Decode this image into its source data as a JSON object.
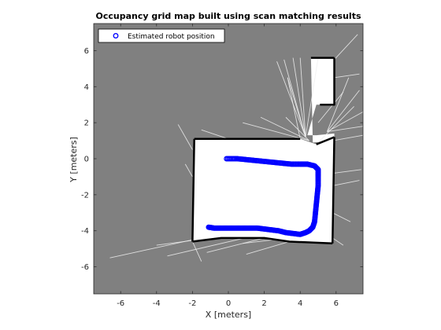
{
  "chart_data": {
    "type": "scatter",
    "title": "Occupancy grid map built using scan matching results",
    "xlabel": "X [meters]",
    "ylabel": "Y [meters]",
    "xlim": [
      -7.5,
      7.5
    ],
    "ylim": [
      -7.5,
      7.5
    ],
    "xticks": [
      -6,
      -4,
      -2,
      0,
      2,
      4,
      6
    ],
    "yticks": [
      -6,
      -4,
      -2,
      0,
      2,
      4,
      6
    ],
    "xtick_labels": [
      "-6",
      "-4",
      "-2",
      "0",
      "2",
      "4",
      "6"
    ],
    "ytick_labels": [
      "-6",
      "-4",
      "-2",
      "0",
      "2",
      "4",
      "6"
    ],
    "grid": false,
    "legend": {
      "placement": "top-left",
      "entries": [
        "Estimated robot position"
      ]
    },
    "colors": {
      "unknown": "#808080",
      "free": "#ffffff",
      "occupied": "#000000",
      "trajectory": "#0000ff"
    },
    "map": {
      "free_regions": [
        [
          [
            -1.9,
            1.1
          ],
          [
            4.0,
            1.1
          ],
          [
            4.9,
            0.8
          ],
          [
            5.9,
            1.2
          ],
          [
            5.8,
            -4.7
          ],
          [
            3.4,
            -4.6
          ],
          [
            2.0,
            -4.4
          ],
          [
            -0.4,
            -4.4
          ],
          [
            -2.0,
            -4.6
          ],
          [
            -2.0,
            -2.0
          ]
        ],
        [
          [
            4.6,
            5.6
          ],
          [
            5.9,
            5.6
          ],
          [
            5.9,
            3.0
          ],
          [
            4.9,
            3.0
          ],
          [
            4.4,
            1.3
          ],
          [
            4.9,
            1.3
          ],
          [
            5.9,
            1.4
          ],
          [
            5.9,
            1.0
          ],
          [
            4.7,
            0.9
          ]
        ]
      ],
      "walls": [
        [
          [
            -1.9,
            1.1
          ],
          [
            4.0,
            1.1
          ]
        ],
        [
          [
            -1.9,
            1.1
          ],
          [
            -2.0,
            -4.6
          ]
        ],
        [
          [
            -2.0,
            -4.6
          ],
          [
            -0.4,
            -4.4
          ],
          [
            2.0,
            -4.4
          ],
          [
            3.4,
            -4.6
          ],
          [
            5.8,
            -4.7
          ]
        ],
        [
          [
            5.9,
            1.2
          ],
          [
            5.8,
            -4.7
          ]
        ],
        [
          [
            4.9,
            0.8
          ],
          [
            5.9,
            1.2
          ]
        ],
        [
          [
            4.6,
            5.6
          ],
          [
            5.9,
            5.6
          ]
        ],
        [
          [
            5.9,
            5.6
          ],
          [
            5.9,
            3.0
          ],
          [
            5.1,
            3.0
          ]
        ]
      ],
      "rays": [
        [
          [
            4.3,
            1.2
          ],
          [
            2.7,
            5.4
          ]
        ],
        [
          [
            4.3,
            1.2
          ],
          [
            3.1,
            5.5
          ]
        ],
        [
          [
            4.3,
            1.2
          ],
          [
            3.6,
            5.6
          ]
        ],
        [
          [
            4.3,
            1.2
          ],
          [
            4.0,
            5.6
          ]
        ],
        [
          [
            4.3,
            1.2
          ],
          [
            5.0,
            5.6
          ]
        ],
        [
          [
            4.3,
            1.2
          ],
          [
            3.3,
            4.5
          ]
        ],
        [
          [
            5.5,
            1.5
          ],
          [
            7.3,
            3.8
          ]
        ],
        [
          [
            5.5,
            1.5
          ],
          [
            7.5,
            2.6
          ]
        ],
        [
          [
            5.5,
            1.5
          ],
          [
            7.5,
            1.8
          ]
        ],
        [
          [
            5.5,
            1.5
          ],
          [
            6.7,
            4.5
          ]
        ],
        [
          [
            5.8,
            1.0
          ],
          [
            7.5,
            1.3
          ]
        ],
        [
          [
            5.0,
            2.0
          ],
          [
            6.4,
            3.7
          ]
        ],
        [
          [
            4.5,
            1.0
          ],
          [
            3.2,
            2.3
          ]
        ],
        [
          [
            4.5,
            1.0
          ],
          [
            1.8,
            2.3
          ]
        ],
        [
          [
            4.5,
            1.0
          ],
          [
            0.8,
            2.0
          ]
        ],
        [
          [
            -2.0,
            0.5
          ],
          [
            -2.8,
            1.9
          ]
        ],
        [
          [
            0.0,
            1.1
          ],
          [
            -1.5,
            1.6
          ]
        ],
        [
          [
            5.9,
            -0.8
          ],
          [
            7.4,
            -0.6
          ]
        ],
        [
          [
            -2.0,
            -4.5
          ],
          [
            -6.6,
            -5.5
          ]
        ],
        [
          [
            -1.0,
            -4.4
          ],
          [
            -4.0,
            -4.8
          ]
        ],
        [
          [
            0.9,
            -4.4
          ],
          [
            -3.4,
            -5.4
          ]
        ],
        [
          [
            2.0,
            -4.4
          ],
          [
            -1.2,
            -5.2
          ]
        ],
        [
          [
            5.8,
            -4.4
          ],
          [
            6.4,
            -4.8
          ]
        ],
        [
          [
            5.8,
            -3.0
          ],
          [
            6.8,
            -3.5
          ]
        ],
        [
          [
            -2.0,
            -4.6
          ],
          [
            -1.5,
            -5.7
          ]
        ],
        [
          [
            4.0,
            1.1
          ],
          [
            3.3,
            4.5
          ]
        ],
        [
          [
            5.0,
            0.9
          ],
          [
            7.0,
            2.9
          ]
        ],
        [
          [
            -2.0,
            -1.0
          ],
          [
            -2.4,
            -0.3
          ]
        ],
        [
          [
            5.8,
            -1.5
          ],
          [
            7.3,
            -1.2
          ]
        ],
        [
          [
            5.9,
            5.5
          ],
          [
            7.2,
            6.9
          ]
        ],
        [
          [
            5.9,
            4.5
          ],
          [
            7.3,
            4.7
          ]
        ],
        [
          [
            3.4,
            -4.6
          ],
          [
            1.0,
            -5.3
          ]
        ],
        [
          [
            2.5,
            -4.5
          ],
          [
            0.8,
            -4.7
          ]
        ]
      ]
    },
    "series": [
      {
        "name": "Estimated robot position",
        "x": [
          -0.1,
          0.5,
          1.0,
          1.5,
          2.0,
          2.5,
          3.0,
          3.5,
          4.0,
          4.4,
          4.8,
          5.0,
          5.0,
          5.0,
          4.95,
          4.9,
          4.85,
          4.8,
          4.7,
          4.5,
          4.3,
          4.0,
          3.6,
          3.2,
          2.8,
          2.4,
          2.0,
          1.6,
          1.2,
          0.8,
          0.4,
          0.0,
          -0.4,
          -0.8,
          -1.1
        ],
        "y": [
          0.0,
          0.0,
          -0.05,
          -0.1,
          -0.15,
          -0.2,
          -0.25,
          -0.3,
          -0.3,
          -0.3,
          -0.4,
          -0.6,
          -1.0,
          -1.5,
          -2.0,
          -2.5,
          -3.0,
          -3.5,
          -3.8,
          -4.0,
          -4.1,
          -4.2,
          -4.15,
          -4.1,
          -4.0,
          -3.95,
          -3.9,
          -3.85,
          -3.85,
          -3.85,
          -3.85,
          -3.85,
          -3.85,
          -3.85,
          -3.8
        ]
      }
    ]
  }
}
